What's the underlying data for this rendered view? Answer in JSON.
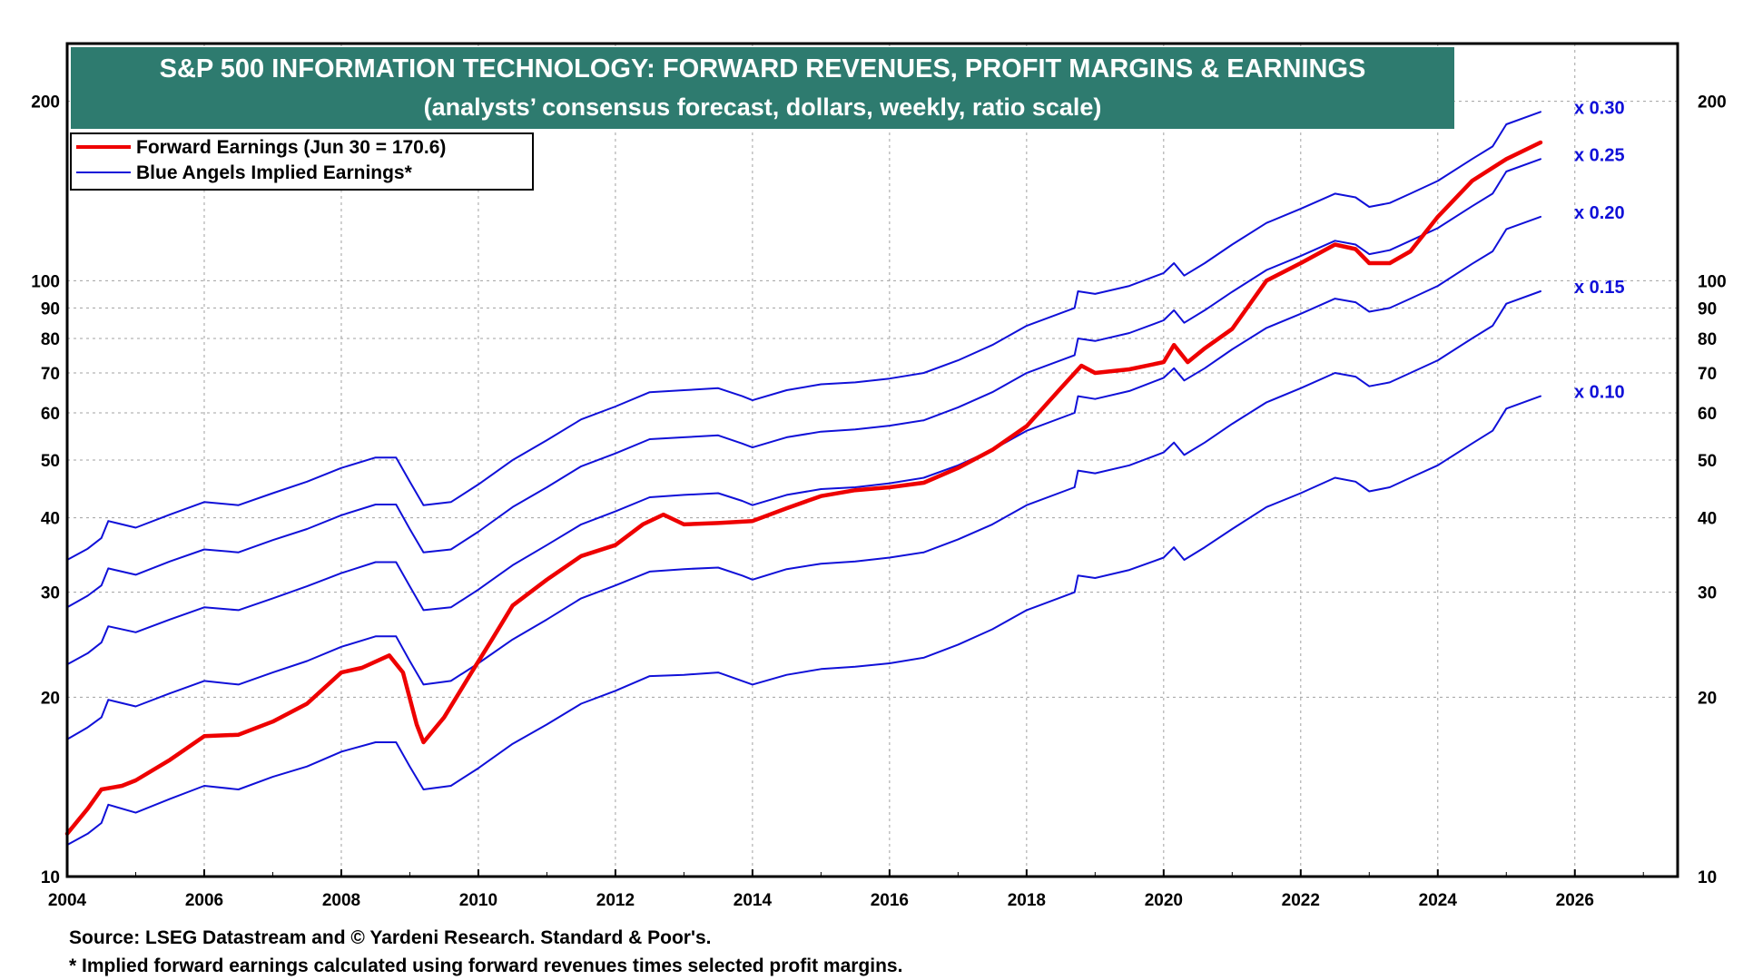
{
  "chart_data": {
    "type": "line",
    "title": "S&P 500 INFORMATION TECHNOLOGY: FORWARD REVENUES, PROFIT MARGINS & EARNINGS",
    "subtitle": "(analysts’ consensus forecast, dollars, weekly, ratio scale)",
    "y_scale": "log",
    "ylim": [
      10,
      250
    ],
    "xlim": [
      2004,
      2027.5
    ],
    "x_ticks": [
      "2004",
      "2006",
      "2008",
      "2010",
      "2012",
      "2014",
      "2016",
      "2018",
      "2020",
      "2022",
      "2024",
      "2026"
    ],
    "y_ticks": [
      "10",
      "20",
      "30",
      "40",
      "50",
      "60",
      "70",
      "80",
      "90",
      "100",
      "200"
    ],
    "grid": true,
    "legend_position": "top-left",
    "legend": [
      {
        "label": "Forward Earnings (Jun 30 = 170.6)",
        "color": "#ee0000"
      },
      {
        "label": "Blue Angels Implied Earnings*",
        "color": "#1010d8"
      }
    ],
    "series": [
      {
        "name": "Forward Earnings (Jun 30 = 170.6)",
        "color": "#ee0000",
        "x": [
          2004.0,
          2004.3,
          2004.5,
          2004.8,
          2005.0,
          2005.5,
          2006.0,
          2006.5,
          2007.0,
          2007.5,
          2008.0,
          2008.3,
          2008.7,
          2008.9,
          2009.1,
          2009.2,
          2009.5,
          2009.9,
          2010.2,
          2010.5,
          2011.0,
          2011.5,
          2012.0,
          2012.4,
          2012.7,
          2013.0,
          2013.5,
          2014.0,
          2014.5,
          2015.0,
          2015.5,
          2016.0,
          2016.5,
          2017.0,
          2017.5,
          2018.0,
          2018.5,
          2018.8,
          2019.0,
          2019.5,
          2020.0,
          2020.15,
          2020.35,
          2020.6,
          2021.0,
          2021.5,
          2022.0,
          2022.5,
          2022.8,
          2023.0,
          2023.3,
          2023.6,
          2024.0,
          2024.5,
          2025.0,
          2025.5
        ],
        "values": [
          11.8,
          13.0,
          14.0,
          14.2,
          14.5,
          15.7,
          17.2,
          17.3,
          18.2,
          19.5,
          22.0,
          22.4,
          23.5,
          22.0,
          18.0,
          16.8,
          18.5,
          22.0,
          25.0,
          28.5,
          31.5,
          34.5,
          36.0,
          39.0,
          40.5,
          39.0,
          39.2,
          39.5,
          41.5,
          43.5,
          44.5,
          45.0,
          45.8,
          48.5,
          52.0,
          57.0,
          66.0,
          72.0,
          70.0,
          71.0,
          73.0,
          78.0,
          73.0,
          77.0,
          83.0,
          100.0,
          107.0,
          115.0,
          113.0,
          107.0,
          107.0,
          112.0,
          128.0,
          147.0,
          160.0,
          170.6
        ]
      },
      {
        "name": "x 0.30",
        "color": "#1010d8",
        "x": [
          2004.0,
          2004.3,
          2004.5,
          2004.6,
          2005.0,
          2005.5,
          2006.0,
          2006.5,
          2007.0,
          2007.5,
          2008.0,
          2008.5,
          2008.8,
          2009.0,
          2009.2,
          2009.6,
          2010.0,
          2010.5,
          2011.0,
          2011.5,
          2012.0,
          2012.5,
          2013.0,
          2013.5,
          2013.85,
          2014.0,
          2014.5,
          2015.0,
          2015.5,
          2016.0,
          2016.5,
          2017.0,
          2017.5,
          2018.0,
          2018.7,
          2018.75,
          2019.0,
          2019.5,
          2020.0,
          2020.15,
          2020.3,
          2020.6,
          2021.0,
          2021.5,
          2022.0,
          2022.5,
          2022.8,
          2023.0,
          2023.3,
          2023.6,
          2024.0,
          2024.5,
          2024.8,
          2025.0,
          2025.5
        ],
        "values": [
          34.0,
          35.5,
          37.0,
          39.5,
          38.5,
          40.5,
          42.5,
          42.0,
          44.0,
          46.0,
          48.5,
          50.5,
          50.5,
          46.0,
          42.0,
          42.5,
          45.5,
          50.0,
          54.0,
          58.5,
          61.5,
          65.0,
          65.5,
          66.0,
          64.0,
          63.0,
          65.5,
          67.0,
          67.5,
          68.5,
          70.0,
          73.5,
          78.0,
          84.0,
          90.0,
          96.0,
          95.0,
          98.0,
          103.0,
          107.0,
          102.0,
          107.0,
          115.0,
          125.0,
          132.0,
          140.0,
          138.0,
          133.0,
          135.0,
          140.0,
          147.0,
          160.0,
          168.0,
          183.0,
          192.0
        ]
      },
      {
        "name": "x 0.25",
        "color": "#1010d8",
        "x": [
          2004.0,
          2004.3,
          2004.5,
          2004.6,
          2005.0,
          2005.5,
          2006.0,
          2006.5,
          2007.0,
          2007.5,
          2008.0,
          2008.5,
          2008.8,
          2009.0,
          2009.2,
          2009.6,
          2010.0,
          2010.5,
          2011.0,
          2011.5,
          2012.0,
          2012.5,
          2013.0,
          2013.5,
          2013.85,
          2014.0,
          2014.5,
          2015.0,
          2015.5,
          2016.0,
          2016.5,
          2017.0,
          2017.5,
          2018.0,
          2018.7,
          2018.75,
          2019.0,
          2019.5,
          2020.0,
          2020.15,
          2020.3,
          2020.6,
          2021.0,
          2021.5,
          2022.0,
          2022.5,
          2022.8,
          2023.0,
          2023.3,
          2023.6,
          2024.0,
          2024.5,
          2024.8,
          2025.0,
          2025.5
        ],
        "values": [
          28.3,
          29.6,
          30.8,
          32.9,
          32.1,
          33.8,
          35.4,
          35.0,
          36.7,
          38.3,
          40.4,
          42.1,
          42.1,
          38.3,
          35.0,
          35.4,
          37.9,
          41.7,
          45.0,
          48.8,
          51.3,
          54.2,
          54.6,
          55.0,
          53.3,
          52.5,
          54.6,
          55.8,
          56.3,
          57.1,
          58.3,
          61.3,
          65.0,
          70.0,
          75.0,
          80.0,
          79.2,
          81.7,
          85.8,
          89.2,
          85.0,
          89.2,
          95.8,
          104.2,
          110.0,
          116.7,
          115.0,
          110.8,
          112.5,
          116.7,
          122.5,
          133.3,
          140.0,
          152.5,
          160.0
        ]
      },
      {
        "name": "x 0.20",
        "color": "#1010d8",
        "x": [
          2004.0,
          2004.3,
          2004.5,
          2004.6,
          2005.0,
          2005.5,
          2006.0,
          2006.5,
          2007.0,
          2007.5,
          2008.0,
          2008.5,
          2008.8,
          2009.0,
          2009.2,
          2009.6,
          2010.0,
          2010.5,
          2011.0,
          2011.5,
          2012.0,
          2012.5,
          2013.0,
          2013.5,
          2013.85,
          2014.0,
          2014.5,
          2015.0,
          2015.5,
          2016.0,
          2016.5,
          2017.0,
          2017.5,
          2018.0,
          2018.7,
          2018.75,
          2019.0,
          2019.5,
          2020.0,
          2020.15,
          2020.3,
          2020.6,
          2021.0,
          2021.5,
          2022.0,
          2022.5,
          2022.8,
          2023.0,
          2023.3,
          2023.6,
          2024.0,
          2024.5,
          2024.8,
          2025.0,
          2025.5
        ],
        "values": [
          22.7,
          23.7,
          24.7,
          26.3,
          25.7,
          27.0,
          28.3,
          28.0,
          29.3,
          30.7,
          32.3,
          33.7,
          33.7,
          30.7,
          28.0,
          28.3,
          30.3,
          33.3,
          36.0,
          39.0,
          41.0,
          43.3,
          43.7,
          44.0,
          42.7,
          42.0,
          43.7,
          44.7,
          45.0,
          45.7,
          46.7,
          49.0,
          52.0,
          56.0,
          60.0,
          64.0,
          63.3,
          65.3,
          68.7,
          71.3,
          68.0,
          71.3,
          76.7,
          83.3,
          88.0,
          93.3,
          92.0,
          88.7,
          90.0,
          93.3,
          98.0,
          106.7,
          112.0,
          122.0,
          128.0
        ]
      },
      {
        "name": "x 0.15",
        "color": "#1010d8",
        "x": [
          2004.0,
          2004.3,
          2004.5,
          2004.6,
          2005.0,
          2005.5,
          2006.0,
          2006.5,
          2007.0,
          2007.5,
          2008.0,
          2008.5,
          2008.8,
          2009.0,
          2009.2,
          2009.6,
          2010.0,
          2010.5,
          2011.0,
          2011.5,
          2012.0,
          2012.5,
          2013.0,
          2013.5,
          2013.85,
          2014.0,
          2014.5,
          2015.0,
          2015.5,
          2016.0,
          2016.5,
          2017.0,
          2017.5,
          2018.0,
          2018.7,
          2018.75,
          2019.0,
          2019.5,
          2020.0,
          2020.15,
          2020.3,
          2020.6,
          2021.0,
          2021.5,
          2022.0,
          2022.5,
          2022.8,
          2023.0,
          2023.3,
          2023.6,
          2024.0,
          2024.5,
          2024.8,
          2025.0,
          2025.5
        ],
        "values": [
          17.0,
          17.8,
          18.5,
          19.8,
          19.3,
          20.3,
          21.3,
          21.0,
          22.0,
          23.0,
          24.3,
          25.3,
          25.3,
          23.0,
          21.0,
          21.3,
          22.8,
          25.0,
          27.0,
          29.3,
          30.8,
          32.5,
          32.8,
          33.0,
          32.0,
          31.5,
          32.8,
          33.5,
          33.8,
          34.3,
          35.0,
          36.8,
          39.0,
          42.0,
          45.0,
          48.0,
          47.5,
          49.0,
          51.5,
          53.5,
          51.0,
          53.5,
          57.5,
          62.5,
          66.0,
          70.0,
          69.0,
          66.5,
          67.5,
          70.0,
          73.5,
          80.0,
          84.0,
          91.5,
          96.0
        ]
      },
      {
        "name": "x 0.10",
        "color": "#1010d8",
        "x": [
          2004.0,
          2004.3,
          2004.5,
          2004.6,
          2005.0,
          2005.5,
          2006.0,
          2006.5,
          2007.0,
          2007.5,
          2008.0,
          2008.5,
          2008.8,
          2009.0,
          2009.2,
          2009.6,
          2010.0,
          2010.5,
          2011.0,
          2011.5,
          2012.0,
          2012.5,
          2013.0,
          2013.5,
          2013.85,
          2014.0,
          2014.5,
          2015.0,
          2015.5,
          2016.0,
          2016.5,
          2017.0,
          2017.5,
          2018.0,
          2018.7,
          2018.75,
          2019.0,
          2019.5,
          2020.0,
          2020.15,
          2020.3,
          2020.6,
          2021.0,
          2021.5,
          2022.0,
          2022.5,
          2022.8,
          2023.0,
          2023.3,
          2023.6,
          2024.0,
          2024.5,
          2024.8,
          2025.0,
          2025.5
        ],
        "values": [
          11.3,
          11.8,
          12.3,
          13.2,
          12.8,
          13.5,
          14.2,
          14.0,
          14.7,
          15.3,
          16.2,
          16.8,
          16.8,
          15.3,
          14.0,
          14.2,
          15.2,
          16.7,
          18.0,
          19.5,
          20.5,
          21.7,
          21.8,
          22.0,
          21.3,
          21.0,
          21.8,
          22.3,
          22.5,
          22.8,
          23.3,
          24.5,
          26.0,
          28.0,
          30.0,
          32.0,
          31.7,
          32.7,
          34.3,
          35.7,
          34.0,
          35.7,
          38.3,
          41.7,
          44.0,
          46.7,
          46.0,
          44.3,
          45.0,
          46.7,
          49.0,
          53.3,
          56.0,
          61.0,
          64.0
        ]
      }
    ],
    "annotations": [
      "x 0.30",
      "x 0.25",
      "x 0.20",
      "x 0.15",
      "x 0.10"
    ],
    "footnotes": [
      "Source: LSEG Datastream and © Yardeni Research. Standard & Poor's.",
      "* Implied forward earnings calculated using forward revenues times selected profit margins."
    ],
    "colors": {
      "red_series": "#ee0000",
      "blue_series": "#1010d8",
      "title_bg": "#2e7b6f"
    }
  }
}
